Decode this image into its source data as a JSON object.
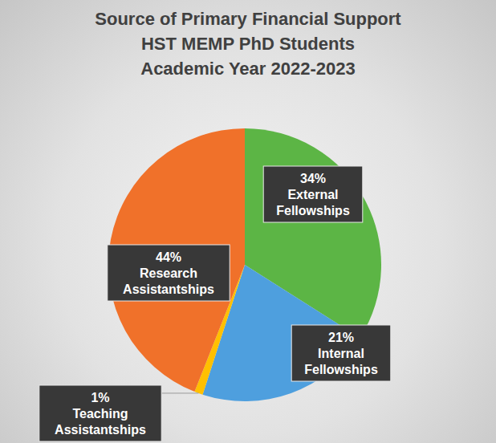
{
  "chart_data": {
    "type": "pie",
    "title": "Source of Primary Financial Support\nHST MEMP PhD Students\nAcademic Year 2022-2023",
    "categories": [
      "External Fellowships",
      "Internal Fellowships",
      "Teaching Assistantships",
      "Research Assistantships"
    ],
    "values": [
      34,
      21,
      1,
      44
    ],
    "value_labels": [
      "34%",
      "21%",
      "1%",
      "44%"
    ],
    "colors": [
      "#5CB545",
      "#4E9FDE",
      "#FFC000",
      "#F0712A"
    ],
    "data_labels": true
  }
}
